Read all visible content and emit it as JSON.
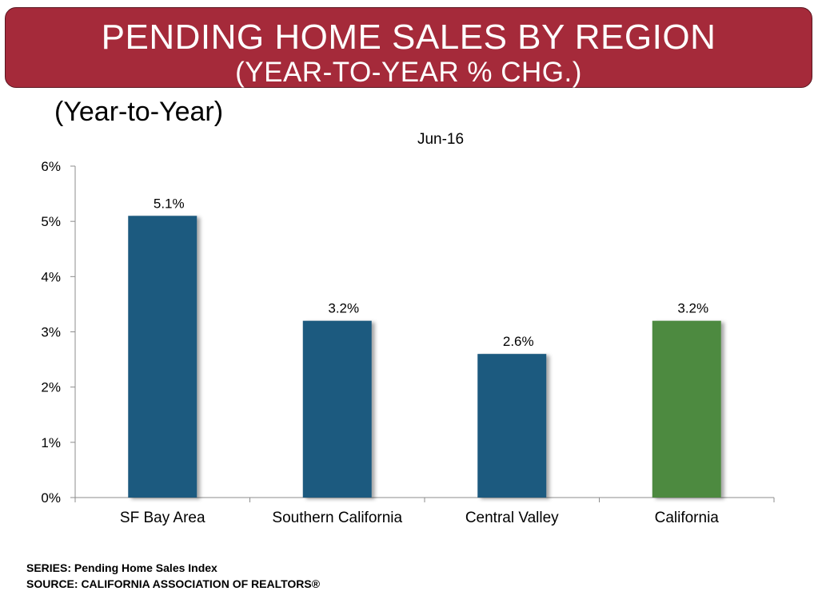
{
  "header": {
    "title_line1": "PENDING HOME SALES BY REGION",
    "title_line2": "(YEAR-TO-YEAR % CHG.)"
  },
  "subheading": "(Year-to-Year)",
  "chart_data": {
    "type": "bar",
    "title": "Jun-16",
    "categories": [
      "SF Bay Area",
      "Southern California",
      "Central Valley",
      "California"
    ],
    "values": [
      5.1,
      3.2,
      2.6,
      3.2
    ],
    "value_labels": [
      "5.1%",
      "3.2%",
      "2.6%",
      "3.2%"
    ],
    "bar_colors": [
      "#1f5a7f",
      "#1f5a7f",
      "#1f5a7f",
      "#4e8a41"
    ],
    "ylim": [
      0,
      6
    ],
    "yticks": [
      0,
      1,
      2,
      3,
      4,
      5,
      6
    ],
    "ytick_labels": [
      "0%",
      "1%",
      "2%",
      "3%",
      "4%",
      "5%",
      "6%"
    ],
    "xlabel": "",
    "ylabel": "",
    "grid": false,
    "legend": "none"
  },
  "footer": {
    "series": "SERIES: Pending Home Sales Index",
    "source": "SOURCE:  CALIFORNIA ASSOCIATION OF REALTORS®"
  }
}
